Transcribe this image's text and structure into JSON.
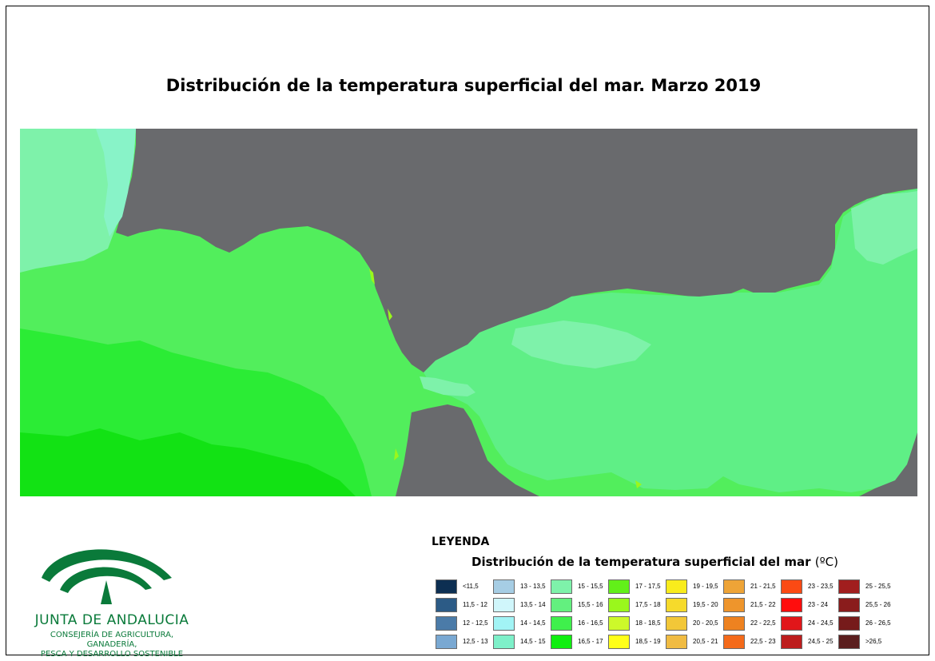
{
  "title": "Distribución de la temperatura superficial del mar. Marzo 2019",
  "legend": {
    "heading": "LEYENDA",
    "subtitle": "Distribución de la temperatura superficial del mar",
    "unit": "(ºC)",
    "items": [
      {
        "label": "<11,5",
        "color": "#0d2f52"
      },
      {
        "label": "11,5 - 12",
        "color": "#2c5b86"
      },
      {
        "label": "12 - 12,5",
        "color": "#4b7ba8"
      },
      {
        "label": "12,5 - 13",
        "color": "#79a8d2"
      },
      {
        "label": "13 - 13,5",
        "color": "#a6cde4"
      },
      {
        "label": "13,5 - 14",
        "color": "#d0f6fb"
      },
      {
        "label": "14 - 14,5",
        "color": "#a2f4f5"
      },
      {
        "label": "14,5 - 15",
        "color": "#7ef0c9"
      },
      {
        "label": "15 - 15,5",
        "color": "#7ef2aa"
      },
      {
        "label": "15,5 - 16",
        "color": "#63f07f"
      },
      {
        "label": "16 - 16,5",
        "color": "#3ff04c"
      },
      {
        "label": "16,5 - 17",
        "color": "#10ee10"
      },
      {
        "label": "17 - 17,5",
        "color": "#62f019"
      },
      {
        "label": "17,5 - 18",
        "color": "#9af71c"
      },
      {
        "label": "18 - 18,5",
        "color": "#cdf92a"
      },
      {
        "label": "18,5 - 19",
        "color": "#ffff19"
      },
      {
        "label": "19 - 19,5",
        "color": "#f9ec1c"
      },
      {
        "label": "19,5 - 20",
        "color": "#f6da2b"
      },
      {
        "label": "20 - 20,5",
        "color": "#f2c738"
      },
      {
        "label": "20,5 - 21",
        "color": "#f0bb42"
      },
      {
        "label": "21 - 21,5",
        "color": "#eea437"
      },
      {
        "label": "21,5 - 22",
        "color": "#ee952c"
      },
      {
        "label": "22 - 22,5",
        "color": "#ee8220"
      },
      {
        "label": "22,5 - 23",
        "color": "#f46a1a"
      },
      {
        "label": "23 - 23,5",
        "color": "#fb4a14"
      },
      {
        "label": "23 - 24",
        "color": "#ff0d0d"
      },
      {
        "label": "24 - 24,5",
        "color": "#e1161a"
      },
      {
        "label": "24,5 - 25",
        "color": "#bd1d1d"
      },
      {
        "label": "25 - 25,5",
        "color": "#a11e1e"
      },
      {
        "label": "25,5 - 26",
        "color": "#8a1c1c"
      },
      {
        "label": "26 - 26,5",
        "color": "#761b1b"
      },
      {
        "label": ">26,5",
        "color": "#5a1e1e"
      }
    ]
  },
  "logo": {
    "name": "JUNTA DE ANDALUCIA",
    "subtitle": "CONSEJERÍA DE AGRICULTURA, GANADERÍA,\nPESCA Y DESARROLLO SOSTENIBLE",
    "color": "#0a7a3a"
  },
  "map": {
    "land_color": "#696a6d",
    "icons": [
      "sea-temperature-map"
    ]
  }
}
